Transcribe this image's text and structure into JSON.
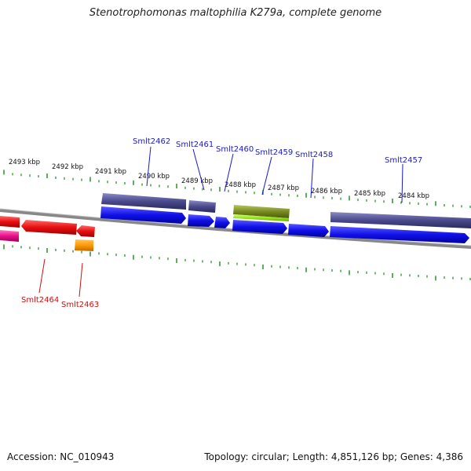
{
  "title": "Stenotrophomonas maltophilia K279a, complete genome",
  "footer": {
    "accession": "Accession: NC_010943",
    "summary": "Topology: circular; Length: 4,851,126 bp; Genes: 4,386"
  },
  "kbp_labels": [
    "2493 kbp",
    "2492 kbp",
    "2491 kbp",
    "2490 kbp",
    "2489 kbp",
    "2488 kbp",
    "2487 kbp",
    "2486 kbp",
    "2485 kbp",
    "2484 kbp"
  ],
  "gene_labels_top": [
    "Smlt2462",
    "Smlt2461",
    "Smlt2460",
    "Smlt2459",
    "Smlt2458",
    "Smlt2457"
  ],
  "gene_labels_bottom": [
    "Smlt2464",
    "Smlt2463"
  ],
  "colors": {
    "forward_gene": "#1010e8",
    "forward_feature": "#4a4a8c",
    "reverse_gene": "#e81010",
    "pink_feature": "#e8108a",
    "orange_feature": "#ff9a00",
    "green_feature": "#99e61a",
    "tick": "#1a8a1a",
    "backbone": "#777777",
    "label_blue": "#1a1acc",
    "label_red": "#cc1111"
  }
}
